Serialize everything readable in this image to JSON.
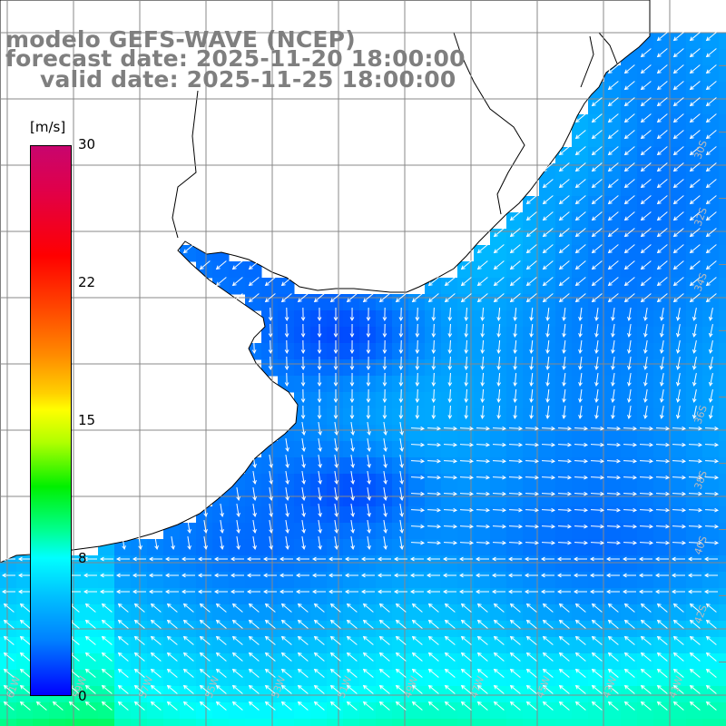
{
  "title": {
    "line1": "modelo GEFS-WAVE (NCEP)",
    "line2": "forecast date: 2025-11-20 18:00:00",
    "line3": "valid date: 2025-11-25 18:00:00"
  },
  "colorbar": {
    "unit": "[m/s]",
    "ticks": [
      "30",
      "22",
      "15",
      "8",
      "0"
    ],
    "colors": [
      "#c8056e",
      "#ff0000",
      "#ffff00",
      "#00ff00",
      "#00ffff",
      "#0000ff"
    ]
  },
  "axes": {
    "lon_labels": [
      "61W",
      "59W",
      "57W",
      "55W",
      "53W",
      "51W",
      "49W",
      "47W",
      "45W",
      "43W",
      "41W"
    ],
    "lat_labels": [
      "30S",
      "32S",
      "34S",
      "36S",
      "38S",
      "40S",
      "42S"
    ]
  },
  "colors": {
    "land": "#ffffff",
    "coast": "#000000",
    "grid": "#888888",
    "arrows": "#ffffff",
    "title": "#7f7f7f"
  }
}
